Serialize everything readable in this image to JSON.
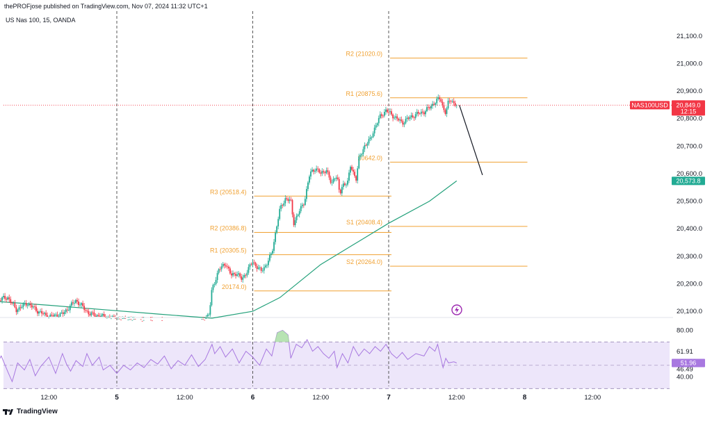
{
  "header": {
    "publisher": "thePROFjose published on TradingView.com, Nov 07, 2024 11:32 UTC+1",
    "symbol": "US Nas 100, 15, OANDA"
  },
  "footer": {
    "brand": "TradingView"
  },
  "colors": {
    "pivot": "#f0a030",
    "ema": "#22a07a",
    "up": "#22ab94",
    "down": "#f23645",
    "rsi": "#a878e0",
    "rsi_band": "#ede6fa",
    "price_badge": "#f23645",
    "ema_badge": "#22ab94"
  },
  "chart_data": [
    {
      "type": "candlestick",
      "title": "US Nas 100, 15, OANDA",
      "ylim": [
        20080,
        21130
      ],
      "y_ticks": [
        "21,100.0",
        "21,000.0",
        "20,900.0",
        "20,800.0",
        "20,700.0",
        "20,600.0",
        "20,500.0",
        "20,400.0",
        "20,300.0",
        "20,200.0",
        "20,100.0"
      ],
      "y_tick_values": [
        21100,
        21000,
        20900,
        20800,
        20700,
        20600,
        20500,
        20400,
        20300,
        20200,
        20100
      ],
      "x_labels": [
        {
          "label": "12:00",
          "t": 0.5,
          "bold": false
        },
        {
          "label": "5",
          "t": 1.0,
          "bold": true
        },
        {
          "label": "12:00",
          "t": 1.5,
          "bold": false
        },
        {
          "label": "6",
          "t": 2.0,
          "bold": true
        },
        {
          "label": "12:00",
          "t": 2.5,
          "bold": false
        },
        {
          "label": "7",
          "t": 3.0,
          "bold": true
        },
        {
          "label": "12:00",
          "t": 3.5,
          "bold": false
        },
        {
          "label": "8",
          "t": 4.0,
          "bold": true
        },
        {
          "label": "12:00",
          "t": 4.5,
          "bold": false
        }
      ],
      "day_separators": [
        1.0,
        2.0,
        3.0
      ],
      "price_path": [
        [
          0.0,
          20148
        ],
        [
          0.1,
          20140
        ],
        [
          0.2,
          20150
        ],
        [
          0.26,
          20105
        ],
        [
          0.34,
          20130
        ],
        [
          0.42,
          20100
        ],
        [
          0.5,
          20080
        ],
        [
          0.6,
          20090
        ],
        [
          0.7,
          20140
        ],
        [
          0.8,
          20090
        ],
        [
          1.0,
          20070
        ],
        [
          1.6,
          20050
        ],
        [
          1.68,
          20090
        ],
        [
          1.7,
          20180
        ],
        [
          1.75,
          20250
        ],
        [
          1.8,
          20275
        ],
        [
          1.84,
          20230
        ],
        [
          1.88,
          20240
        ],
        [
          1.92,
          20215
        ],
        [
          2.0,
          20280
        ],
        [
          2.06,
          20245
        ],
        [
          2.1,
          20270
        ],
        [
          2.14,
          20310
        ],
        [
          2.18,
          20420
        ],
        [
          2.2,
          20470
        ],
        [
          2.24,
          20510
        ],
        [
          2.28,
          20500
        ],
        [
          2.3,
          20420
        ],
        [
          2.34,
          20460
        ],
        [
          2.38,
          20500
        ],
        [
          2.42,
          20600
        ],
        [
          2.46,
          20620
        ],
        [
          2.5,
          20600
        ],
        [
          2.54,
          20615
        ],
        [
          2.58,
          20560
        ],
        [
          2.6,
          20590
        ],
        [
          2.62,
          20590
        ],
        [
          2.64,
          20520
        ],
        [
          2.66,
          20560
        ],
        [
          2.7,
          20570
        ],
        [
          2.72,
          20630
        ],
        [
          2.76,
          20580
        ],
        [
          2.78,
          20650
        ],
        [
          2.82,
          20700
        ],
        [
          2.86,
          20720
        ],
        [
          2.9,
          20770
        ],
        [
          2.94,
          20810
        ],
        [
          2.98,
          20830
        ],
        [
          3.02,
          20815
        ],
        [
          3.06,
          20800
        ],
        [
          3.1,
          20785
        ],
        [
          3.14,
          20800
        ],
        [
          3.2,
          20815
        ],
        [
          3.26,
          20825
        ],
        [
          3.3,
          20840
        ],
        [
          3.34,
          20860
        ],
        [
          3.38,
          20875
        ],
        [
          3.4,
          20840
        ],
        [
          3.42,
          20820
        ],
        [
          3.44,
          20860
        ],
        [
          3.46,
          20870
        ],
        [
          3.48,
          20855
        ],
        [
          3.5,
          20849
        ]
      ],
      "ema_path": [
        [
          0.0,
          20140
        ],
        [
          0.5,
          20122
        ],
        [
          0.9,
          20106
        ],
        [
          1.3,
          20090
        ],
        [
          1.7,
          20075
        ],
        [
          2.0,
          20100
        ],
        [
          2.2,
          20150
        ],
        [
          2.5,
          20270
        ],
        [
          2.8,
          20360
        ],
        [
          3.0,
          20420
        ],
        [
          3.3,
          20500
        ],
        [
          3.5,
          20573.8
        ]
      ],
      "projection": {
        "from": [
          3.52,
          20849
        ],
        "to": [
          3.69,
          20595
        ]
      },
      "pivots": [
        {
          "label": "R3 (20518.4)",
          "value": 20518.4,
          "t0": 2.0,
          "t1": 3.0
        },
        {
          "label": "R2 (20386.8)",
          "value": 20386.8,
          "t0": 2.0,
          "t1": 3.0
        },
        {
          "label": "R1 (20305.5)",
          "value": 20305.5,
          "t0": 2.0,
          "t1": 3.0
        },
        {
          "label": "20174.0)",
          "value": 20174.0,
          "t0": 2.0,
          "t1": 3.0
        },
        {
          "label": "R2 (21020.0)",
          "value": 21020.0,
          "t0": 3.0,
          "t1": 4.0
        },
        {
          "label": "R1 (20875.6)",
          "value": 20875.6,
          "t0": 3.0,
          "t1": 4.0
        },
        {
          "label": "20642.0)",
          "value": 20642.0,
          "t0": 3.0,
          "t1": 4.0
        },
        {
          "label": "S1 (20408.4)",
          "value": 20408.4,
          "t0": 3.0,
          "t1": 4.0
        },
        {
          "label": "S2 (20264.0)",
          "value": 20264.0,
          "t0": 3.0,
          "t1": 4.0
        }
      ],
      "last_price": {
        "symbol": "NAS100USD",
        "value": "20,849.0",
        "countdown": "12:15",
        "raw": 20849.0
      },
      "ema_value": {
        "value": "20,573.8",
        "raw": 20573.8
      }
    },
    {
      "type": "line",
      "title": "RSI",
      "ylim": [
        32,
        88
      ],
      "y_ticks": [
        "80.00",
        "61.91",
        "46.49",
        "40.00"
      ],
      "y_tick_values": [
        80.0,
        61.91,
        46.49,
        40.0
      ],
      "bands": [
        70,
        50,
        30
      ],
      "current": {
        "value": "51.96",
        "raw": 51.96
      },
      "rsi_path": [
        [
          0.0,
          50
        ],
        [
          0.05,
          56
        ],
        [
          0.1,
          48
        ],
        [
          0.15,
          58
        ],
        [
          0.2,
          44
        ],
        [
          0.23,
          36
        ],
        [
          0.27,
          52
        ],
        [
          0.32,
          46
        ],
        [
          0.36,
          55
        ],
        [
          0.4,
          41
        ],
        [
          0.44,
          49
        ],
        [
          0.5,
          57
        ],
        [
          0.55,
          43
        ],
        [
          0.6,
          60
        ],
        [
          0.63,
          51
        ],
        [
          0.66,
          45
        ],
        [
          0.7,
          54
        ],
        [
          0.75,
          49
        ],
        [
          0.78,
          60
        ],
        [
          0.82,
          50
        ],
        [
          0.87,
          57
        ],
        [
          0.9,
          46
        ],
        [
          0.95,
          50
        ],
        [
          1.0,
          43
        ],
        [
          1.05,
          50
        ],
        [
          1.1,
          46
        ],
        [
          1.15,
          52
        ],
        [
          1.2,
          48
        ],
        [
          1.25,
          55
        ],
        [
          1.3,
          51
        ],
        [
          1.35,
          58
        ],
        [
          1.4,
          47
        ],
        [
          1.45,
          54
        ],
        [
          1.5,
          50
        ],
        [
          1.55,
          59
        ],
        [
          1.6,
          49
        ],
        [
          1.65,
          55
        ],
        [
          1.7,
          68
        ],
        [
          1.72,
          60
        ],
        [
          1.76,
          66
        ],
        [
          1.8,
          57
        ],
        [
          1.85,
          64
        ],
        [
          1.9,
          52
        ],
        [
          1.95,
          62
        ],
        [
          2.0,
          57
        ],
        [
          2.05,
          50
        ],
        [
          2.1,
          64
        ],
        [
          2.14,
          58
        ],
        [
          2.18,
          78
        ],
        [
          2.22,
          80
        ],
        [
          2.26,
          76
        ],
        [
          2.28,
          56
        ],
        [
          2.32,
          68
        ],
        [
          2.36,
          65
        ],
        [
          2.4,
          72
        ],
        [
          2.44,
          62
        ],
        [
          2.48,
          66
        ],
        [
          2.52,
          60
        ],
        [
          2.56,
          56
        ],
        [
          2.6,
          62
        ],
        [
          2.62,
          48
        ],
        [
          2.66,
          60
        ],
        [
          2.7,
          52
        ],
        [
          2.74,
          66
        ],
        [
          2.78,
          58
        ],
        [
          2.82,
          64
        ],
        [
          2.86,
          60
        ],
        [
          2.9,
          66
        ],
        [
          2.94,
          62
        ],
        [
          2.98,
          68
        ],
        [
          3.02,
          60
        ],
        [
          3.06,
          56
        ],
        [
          3.1,
          61
        ],
        [
          3.14,
          55
        ],
        [
          3.2,
          60
        ],
        [
          3.26,
          58
        ],
        [
          3.3,
          66
        ],
        [
          3.34,
          62
        ],
        [
          3.36,
          68
        ],
        [
          3.38,
          58
        ],
        [
          3.4,
          48
        ],
        [
          3.42,
          56
        ],
        [
          3.44,
          52
        ],
        [
          3.48,
          53
        ],
        [
          3.5,
          51.96
        ]
      ]
    }
  ]
}
